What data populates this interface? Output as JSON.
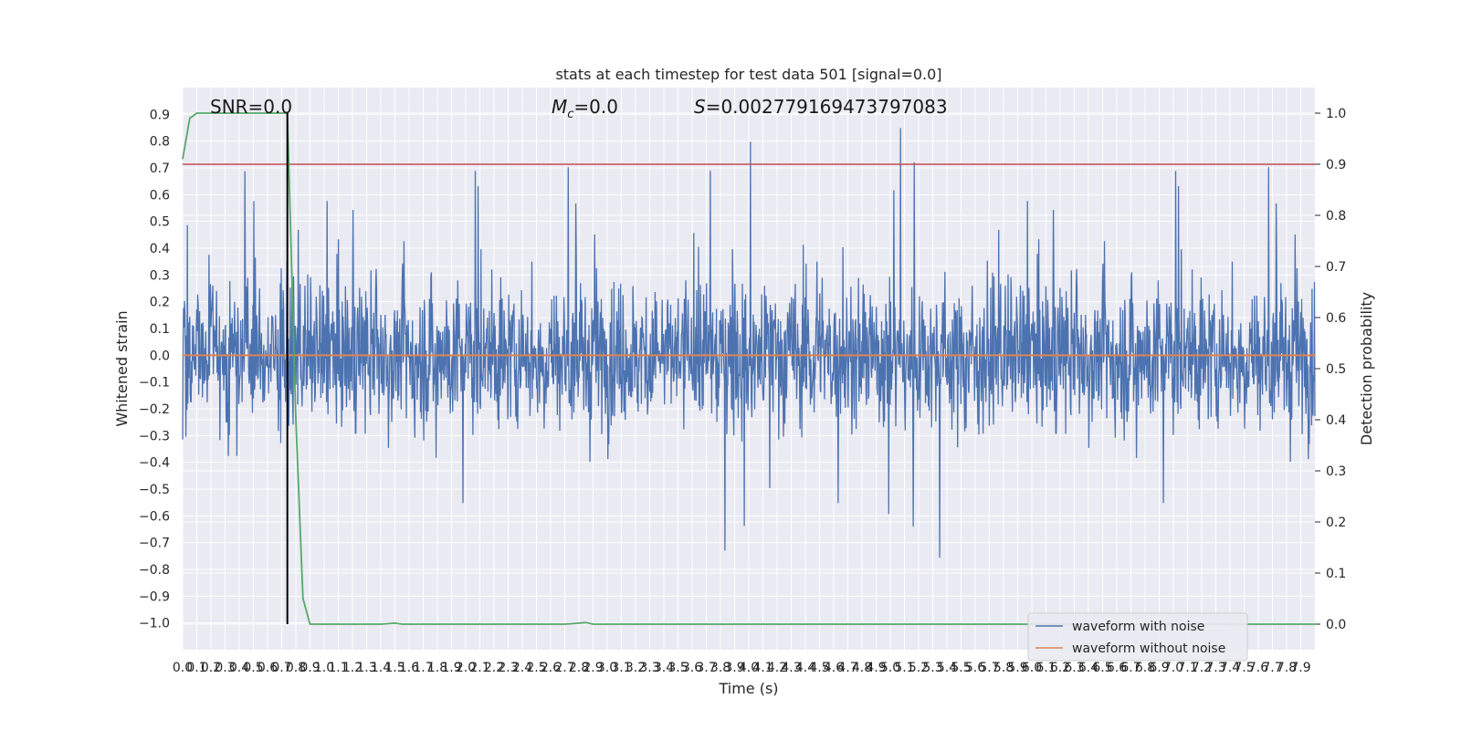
{
  "chart_data": {
    "type": "line",
    "title": "stats at each timestep for test data 501 [signal=0.0]",
    "xlabel": "Time (s)",
    "ylabel": "Whitened strain",
    "y2label": "Detection probability",
    "xlim": [
      0,
      8.0
    ],
    "ylim": [
      -1.1,
      1.0
    ],
    "y2lim": [
      -0.05,
      1.05
    ],
    "x_ticks": [
      "0.0",
      "0.1",
      "0.2",
      "0.3",
      "0.4",
      "0.5",
      "0.6",
      "0.7",
      "0.8",
      "0.9",
      "1.0",
      "1.1",
      "1.2",
      "1.3",
      "1.4",
      "1.5",
      "1.6",
      "1.7",
      "1.8",
      "1.9",
      "2.0",
      "2.1",
      "2.2",
      "2.3",
      "2.4",
      "2.5",
      "2.6",
      "2.7",
      "2.8",
      "2.9",
      "3.0",
      "3.1",
      "3.2",
      "3.3",
      "3.4",
      "3.5",
      "3.6",
      "3.7",
      "3.8",
      "3.9",
      "4.0",
      "4.1",
      "4.2",
      "4.3",
      "4.4",
      "4.5",
      "4.6",
      "4.7",
      "4.8",
      "4.9",
      "5.0",
      "5.1",
      "5.2",
      "5.3",
      "5.4",
      "5.5",
      "5.6",
      "5.7",
      "5.8",
      "5.9",
      "6.0",
      "6.1",
      "6.2",
      "6.3",
      "6.4",
      "6.5",
      "6.6",
      "6.7",
      "6.8",
      "6.9",
      "7.0",
      "7.1",
      "7.2",
      "7.3",
      "7.4",
      "7.5",
      "7.6",
      "7.7",
      "7.8",
      "7.9"
    ],
    "y_ticks": [
      "0.9",
      "0.8",
      "0.7",
      "0.6",
      "0.5",
      "0.4",
      "0.3",
      "0.2",
      "0.1",
      "0.0",
      "−0.1",
      "−0.2",
      "−0.3",
      "−0.4",
      "−0.5",
      "−0.6",
      "−0.7",
      "−0.8",
      "−0.9",
      "−1.0"
    ],
    "y2_ticks": [
      "1.0",
      "0.9",
      "0.8",
      "0.7",
      "0.6",
      "0.5",
      "0.4",
      "0.3",
      "0.2",
      "0.1",
      "0.0"
    ],
    "annotations": {
      "snr": "SNR=0.0",
      "mc_symbol": "M",
      "mc_sub": "c",
      "mc_value": "=0.0",
      "s_symbol": "S",
      "s_value": "=0.002779169473797083"
    },
    "threshold": 0.9,
    "marker_time": 0.74,
    "series": [
      {
        "name": "waveform with noise",
        "color": "#4c72b0",
        "noise_amplitude": 0.45,
        "peak_min": -1.0,
        "peak_max": 0.9
      },
      {
        "name": "waveform without noise",
        "color": "#dd8452",
        "x": [
          0.0,
          8.0
        ],
        "y": [
          0.0,
          0.0
        ]
      },
      {
        "color": "#55a868",
        "axis": "right",
        "x": [
          0.0,
          0.05,
          0.1,
          0.2,
          0.3,
          0.4,
          0.5,
          0.6,
          0.7,
          0.74,
          0.76,
          0.8,
          0.85,
          0.9,
          1.0,
          1.4,
          1.5,
          1.55,
          1.6,
          2.0,
          2.7,
          2.85,
          2.9,
          3.0,
          4.0,
          5.0,
          6.0,
          7.0,
          8.0
        ],
        "y": [
          0.91,
          0.99,
          1.0,
          1.0,
          1.0,
          1.0,
          1.0,
          1.0,
          1.0,
          1.0,
          0.8,
          0.4,
          0.05,
          0.0,
          0.0,
          0.0,
          0.002,
          0.0,
          0.0,
          0.0,
          0.0,
          0.003,
          0.0,
          0.0,
          0.0,
          0.0,
          0.0,
          0.0,
          0.0
        ]
      }
    ],
    "threshold_color": "#c44e52",
    "marker_color": "#000000",
    "grid": true,
    "legend_position": "lower-right"
  }
}
